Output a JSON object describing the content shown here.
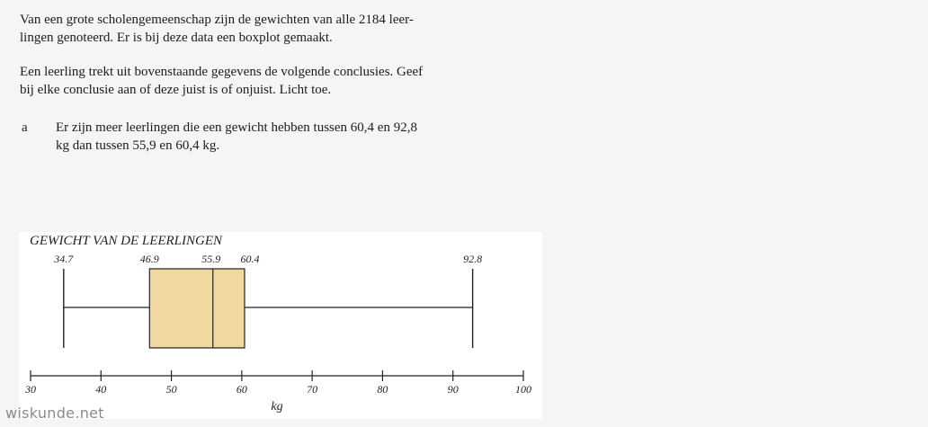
{
  "intro": {
    "paragraph1": "Van een grote scholengemeenschap zijn de gewichten van alle 2184 leer- lingen genoteerd. Er is bij deze data een boxplot gemaakt.",
    "paragraph1_line1": "Van een grote scholengemeenschap zijn de gewichten van alle 2184 leer-",
    "paragraph1_line2": "lingen genoteerd. Er is bij deze data een boxplot gemaakt.",
    "paragraph2_line1": "Een leerling trekt uit bovenstaande gegevens de volgende conclusies. Geef",
    "paragraph2_line2": "bij elke conclusie aan of deze juist is of onjuist.  Licht toe."
  },
  "question": {
    "letter": "a",
    "line1": "Er zijn meer leerlingen die een gewicht hebben tussen 60,4 en 92,8",
    "line2": "kg dan tussen 55,9 en 60,4 kg."
  },
  "chart_data": {
    "type": "boxplot",
    "title": "GEWICHT VAN  DE LEERLINGEN",
    "xlabel": "kg",
    "xlim": [
      30,
      100
    ],
    "ticks": [
      30,
      40,
      50,
      60,
      70,
      80,
      90,
      100
    ],
    "tick_labels": [
      "30",
      "40",
      "50",
      "60",
      "70",
      "80",
      "90",
      "100"
    ],
    "five_number_summary": {
      "min": 34.7,
      "q1": 46.9,
      "median": 55.9,
      "q3": 60.4,
      "max": 92.8
    },
    "value_labels": [
      "34.7",
      "46.9",
      "55.9",
      "60.4",
      "92.8"
    ],
    "box_color": "#f0d8a0",
    "line_color": "#222222"
  },
  "watermark": "wiskunde.net"
}
